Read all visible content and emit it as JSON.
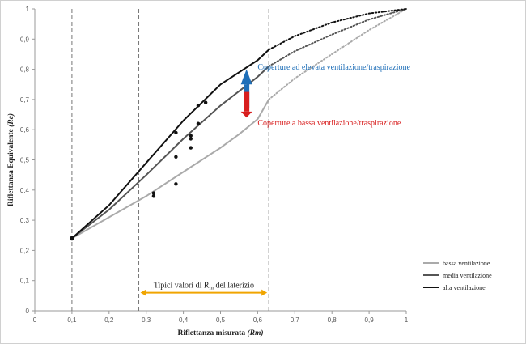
{
  "chart_data": {
    "type": "line",
    "xlabel_main": "Riflettanza misurata",
    "xlabel_sym": "(Rm)",
    "ylabel_main": "Riflettanza Equivalente",
    "ylabel_sym": "(Re)",
    "xlim": [
      0,
      1
    ],
    "ylim": [
      0,
      1
    ],
    "xticks": [
      "0",
      "0,1",
      "0,2",
      "0,3",
      "0,4",
      "0,5",
      "0,6",
      "0,7",
      "0,8",
      "0,9",
      "1"
    ],
    "yticks": [
      "0",
      "0,1",
      "0,2",
      "0,3",
      "0,4",
      "0,5",
      "0,6",
      "0,7",
      "0,8",
      "0,9",
      "1"
    ],
    "grid": false,
    "legend_position": "bottom-right",
    "series": [
      {
        "name": "bassa ventilazione",
        "color": "#aaaaaa",
        "solid": [
          [
            0.1,
            0.24
          ],
          [
            0.2,
            0.31
          ],
          [
            0.3,
            0.38
          ],
          [
            0.4,
            0.46
          ],
          [
            0.5,
            0.54
          ],
          [
            0.55,
            0.585
          ],
          [
            0.6,
            0.635
          ],
          [
            0.63,
            0.7
          ]
        ],
        "dotted": [
          [
            0.63,
            0.7
          ],
          [
            0.7,
            0.77
          ],
          [
            0.8,
            0.85
          ],
          [
            0.9,
            0.93
          ],
          [
            1.0,
            1.0
          ]
        ]
      },
      {
        "name": "media ventilazione",
        "color": "#555555",
        "solid": [
          [
            0.1,
            0.24
          ],
          [
            0.2,
            0.335
          ],
          [
            0.3,
            0.45
          ],
          [
            0.4,
            0.57
          ],
          [
            0.5,
            0.68
          ],
          [
            0.6,
            0.775
          ],
          [
            0.63,
            0.81
          ]
        ],
        "dotted": [
          [
            0.63,
            0.81
          ],
          [
            0.7,
            0.86
          ],
          [
            0.8,
            0.915
          ],
          [
            0.9,
            0.965
          ],
          [
            1.0,
            1.0
          ]
        ]
      },
      {
        "name": "alta ventilazione",
        "color": "#111111",
        "solid": [
          [
            0.1,
            0.24
          ],
          [
            0.2,
            0.35
          ],
          [
            0.3,
            0.49
          ],
          [
            0.4,
            0.63
          ],
          [
            0.5,
            0.75
          ],
          [
            0.6,
            0.83
          ],
          [
            0.63,
            0.865
          ]
        ],
        "dotted": [
          [
            0.63,
            0.865
          ],
          [
            0.7,
            0.91
          ],
          [
            0.8,
            0.955
          ],
          [
            0.9,
            0.985
          ],
          [
            1.0,
            1.0
          ]
        ]
      }
    ],
    "points": [
      [
        0.1,
        0.24
      ],
      [
        0.32,
        0.38
      ],
      [
        0.32,
        0.39
      ],
      [
        0.38,
        0.42
      ],
      [
        0.38,
        0.51
      ],
      [
        0.38,
        0.59
      ],
      [
        0.42,
        0.54
      ],
      [
        0.42,
        0.57
      ],
      [
        0.42,
        0.58
      ],
      [
        0.44,
        0.62
      ],
      [
        0.44,
        0.68
      ],
      [
        0.46,
        0.69
      ]
    ],
    "vlines": [
      0.1,
      0.28,
      0.63
    ],
    "range_arrow": {
      "from": 0.28,
      "to": 0.63,
      "y": 0.06,
      "label_prefix": "Tipici valori di R",
      "label_sub": "m",
      "label_suffix": " del laterizio",
      "color": "#f0a500"
    },
    "annotations": {
      "high": {
        "text": "Coperture  ad elevata  ventilazione/traspirazione",
        "color": "#1f6fb8"
      },
      "low": {
        "text": "Coperture  a bassa  ventilazione/traspirazione",
        "color": "#d81e1e"
      }
    }
  }
}
